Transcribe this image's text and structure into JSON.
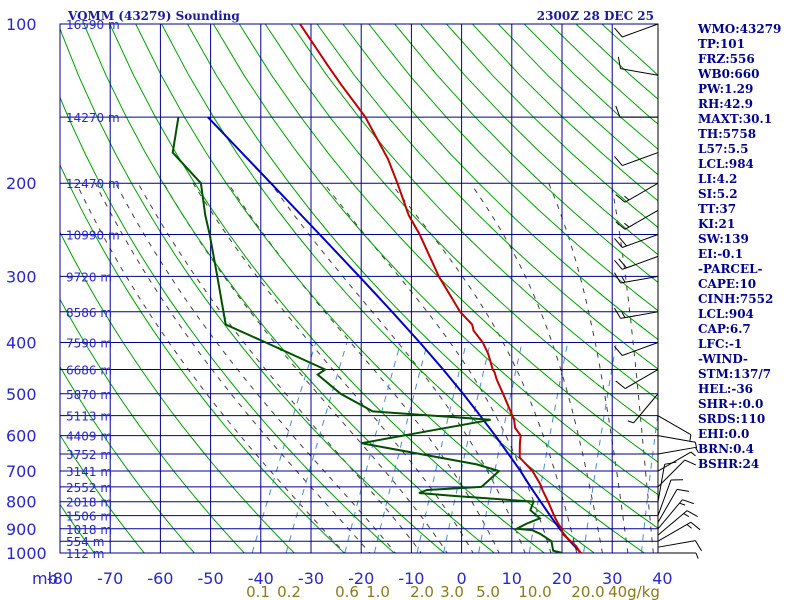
{
  "title_left": "VOMM (43279) Sounding",
  "title_right": "2300Z 28 DEC 25",
  "unit_label": "mb",
  "indices": [
    "WMO:43279",
    "TP:101",
    "FRZ:556",
    "WB0:660",
    "PW:1.29",
    "RH:42.9",
    "MAXT:30.1",
    "TH:5758",
    "L57:5.5",
    "LCL:984",
    "LI:4.2",
    "SI:5.2",
    "TT:37",
    "KI:21",
    "SW:139",
    "EI:-0.1",
    "-PARCEL-",
    "CAPE:10",
    "CINH:7552",
    "LCL:904",
    "CAP:6.7",
    "LFC:-1",
    "-WIND-",
    "STM:137/7",
    "HEL:-36",
    "SHR+:0.0",
    "SRDS:110",
    "EHI:0.0",
    "BRN:0.4",
    "BSHR:24"
  ],
  "colors": {
    "temperature": "#c00000",
    "dewpoint": "#005000",
    "parcel": "#0000c0",
    "grid": "#00008b",
    "dry_adiabat": "#00a000",
    "moist_adiabat": "#404040",
    "mixing_ratio": "#4a8ad0"
  },
  "chart_data": {
    "type": "skew-t",
    "pressure_ticks": [
      100,
      200,
      300,
      400,
      500,
      600,
      700,
      800,
      900,
      1000
    ],
    "temperature_ticks": [
      -80,
      -70,
      -60,
      -50,
      -40,
      -30,
      -20,
      -10,
      0,
      10,
      20,
      30,
      40
    ],
    "mixing_ratio_labels": [
      "0.1",
      "0.2",
      "0.6",
      "1.0",
      "2.0",
      "3.0",
      "5.0",
      "10.0",
      "20.0",
      "40g/kg"
    ],
    "height_labels": [
      {
        "p": 100,
        "label": "16590 m"
      },
      {
        "p": 150,
        "label": "14270 m"
      },
      {
        "p": 200,
        "label": "12470 m"
      },
      {
        "p": 250,
        "label": "10990 m"
      },
      {
        "p": 300,
        "label": "9720 m"
      },
      {
        "p": 350,
        "label": "8586 m"
      },
      {
        "p": 400,
        "label": "7590 m"
      },
      {
        "p": 450,
        "label": "6686 m"
      },
      {
        "p": 500,
        "label": "5870 m"
      },
      {
        "p": 550,
        "label": "5113 m"
      },
      {
        "p": 600,
        "label": "4409 m"
      },
      {
        "p": 650,
        "label": "3752 m"
      },
      {
        "p": 700,
        "label": "3141 m"
      },
      {
        "p": 750,
        "label": "2552 m"
      },
      {
        "p": 800,
        "label": "2018 m"
      },
      {
        "p": 850,
        "label": "1506 m"
      },
      {
        "p": 900,
        "label": "1018 m"
      },
      {
        "p": 950,
        "label": "554 m"
      },
      {
        "p": 1000,
        "label": "112 m"
      }
    ],
    "temperature": [
      {
        "p": 1005,
        "t": 25.3
      },
      {
        "p": 1000,
        "t": 24.1
      },
      {
        "p": 970,
        "t": 22.5
      },
      {
        "p": 920,
        "t": 18.6
      },
      {
        "p": 900,
        "t": 17.9
      },
      {
        "p": 880,
        "t": 16.7
      },
      {
        "p": 860,
        "t": 15.6
      },
      {
        "p": 800,
        "t": 12.5
      },
      {
        "p": 760,
        "t": 10.2
      },
      {
        "p": 740,
        "t": 9.1
      },
      {
        "p": 700,
        "t": 6.3
      },
      {
        "p": 660,
        "t": 2.4
      },
      {
        "p": 620,
        "t": 1.0
      },
      {
        "p": 600,
        "t": 0.4
      },
      {
        "p": 580,
        "t": -1.5
      },
      {
        "p": 560,
        "t": -2.5
      },
      {
        "p": 500,
        "t": -7.3
      },
      {
        "p": 470,
        "t": -10.0
      },
      {
        "p": 455,
        "t": -11.2
      },
      {
        "p": 450,
        "t": -11.8
      },
      {
        "p": 420,
        "t": -14.3
      },
      {
        "p": 400,
        "t": -16.5
      },
      {
        "p": 380,
        "t": -19.5
      },
      {
        "p": 370,
        "t": -20.4
      },
      {
        "p": 350,
        "t": -24.1
      },
      {
        "p": 300,
        "t": -31.9
      },
      {
        "p": 250,
        "t": -39.9
      },
      {
        "p": 230,
        "t": -44.0
      },
      {
        "p": 200,
        "t": -49.5
      },
      {
        "p": 180,
        "t": -53.8
      },
      {
        "p": 150,
        "t": -62.5
      },
      {
        "p": 130,
        "t": -70.7
      },
      {
        "p": 120,
        "t": -75.1
      },
      {
        "p": 100,
        "t": -84.9
      }
    ],
    "dewpoint": [
      {
        "p": 1000,
        "t": 20.5
      },
      {
        "p": 990,
        "t": 18.4
      },
      {
        "p": 950,
        "t": 17.1
      },
      {
        "p": 920,
        "t": 14.1
      },
      {
        "p": 905,
        "t": 12.1
      },
      {
        "p": 900,
        "t": 8.9
      },
      {
        "p": 880,
        "t": 10.4
      },
      {
        "p": 860,
        "t": 12.5
      },
      {
        "p": 830,
        "t": 9.8
      },
      {
        "p": 800,
        "t": 9.6
      },
      {
        "p": 780,
        "t": -7.0
      },
      {
        "p": 770,
        "t": -14.2
      },
      {
        "p": 760,
        "t": -12.9
      },
      {
        "p": 750,
        "t": -2.3
      },
      {
        "p": 700,
        "t": -0.4
      },
      {
        "p": 680,
        "t": -5.5
      },
      {
        "p": 620,
        "t": -30.7
      },
      {
        "p": 560,
        "t": -7.2
      },
      {
        "p": 540,
        "t": -31.6
      },
      {
        "p": 500,
        "t": -39.8
      },
      {
        "p": 460,
        "t": -46.3
      },
      {
        "p": 450,
        "t": -45.3
      },
      {
        "p": 400,
        "t": -59.9
      },
      {
        "p": 370,
        "t": -69.7
      },
      {
        "p": 300,
        "t": -76.2
      },
      {
        "p": 250,
        "t": -81.9
      },
      {
        "p": 230,
        "t": -84.7
      },
      {
        "p": 200,
        "t": -88.8
      },
      {
        "p": 175,
        "t": -97.5
      },
      {
        "p": 150,
        "t": -99.9
      }
    ],
    "parcel": [
      {
        "p": 1000,
        "t": 24.2
      },
      {
        "p": 950,
        "t": 20.8
      },
      {
        "p": 900,
        "t": 17.5
      },
      {
        "p": 850,
        "t": 14.3
      },
      {
        "p": 800,
        "t": 11.0
      },
      {
        "p": 750,
        "t": 7.5
      },
      {
        "p": 700,
        "t": 3.9
      },
      {
        "p": 650,
        "t": -0.2
      },
      {
        "p": 600,
        "t": -4.7
      },
      {
        "p": 550,
        "t": -9.7
      },
      {
        "p": 500,
        "t": -15.3
      },
      {
        "p": 450,
        "t": -21.7
      },
      {
        "p": 400,
        "t": -29.1
      },
      {
        "p": 350,
        "t": -37.7
      },
      {
        "p": 300,
        "t": -47.8
      },
      {
        "p": 250,
        "t": -59.9
      },
      {
        "p": 200,
        "t": -74.8
      },
      {
        "p": 150,
        "t": -94.0
      }
    ],
    "wind": [
      {
        "p": 1000,
        "dir": 90,
        "spd": 5
      },
      {
        "p": 975,
        "dir": 80,
        "spd": 10
      },
      {
        "p": 950,
        "dir": 60,
        "spd": 15
      },
      {
        "p": 925,
        "dir": 50,
        "spd": 15
      },
      {
        "p": 900,
        "dir": 40,
        "spd": 15
      },
      {
        "p": 875,
        "dir": 30,
        "spd": 10
      },
      {
        "p": 850,
        "dir": 20,
        "spd": 10
      },
      {
        "p": 800,
        "dir": 10,
        "spd": 10
      },
      {
        "p": 750,
        "dir": 45,
        "spd": 10
      },
      {
        "p": 700,
        "dir": 60,
        "spd": 5
      },
      {
        "p": 650,
        "dir": 80,
        "spd": 5
      },
      {
        "p": 600,
        "dir": 100,
        "spd": 5
      },
      {
        "p": 550,
        "dir": 120,
        "spd": 5
      },
      {
        "p": 500,
        "dir": 220,
        "spd": 5
      },
      {
        "p": 450,
        "dir": 240,
        "spd": 10
      },
      {
        "p": 400,
        "dir": 250,
        "spd": 10
      },
      {
        "p": 350,
        "dir": 260,
        "spd": 15
      },
      {
        "p": 300,
        "dir": 260,
        "spd": 15
      },
      {
        "p": 275,
        "dir": 250,
        "spd": 20
      },
      {
        "p": 250,
        "dir": 250,
        "spd": 20
      },
      {
        "p": 225,
        "dir": 240,
        "spd": 15
      },
      {
        "p": 200,
        "dir": 240,
        "spd": 15
      },
      {
        "p": 175,
        "dir": 250,
        "spd": 10
      },
      {
        "p": 150,
        "dir": 270,
        "spd": 10
      },
      {
        "p": 125,
        "dir": 280,
        "spd": 10
      },
      {
        "p": 100,
        "dir": 250,
        "spd": 10
      }
    ]
  }
}
